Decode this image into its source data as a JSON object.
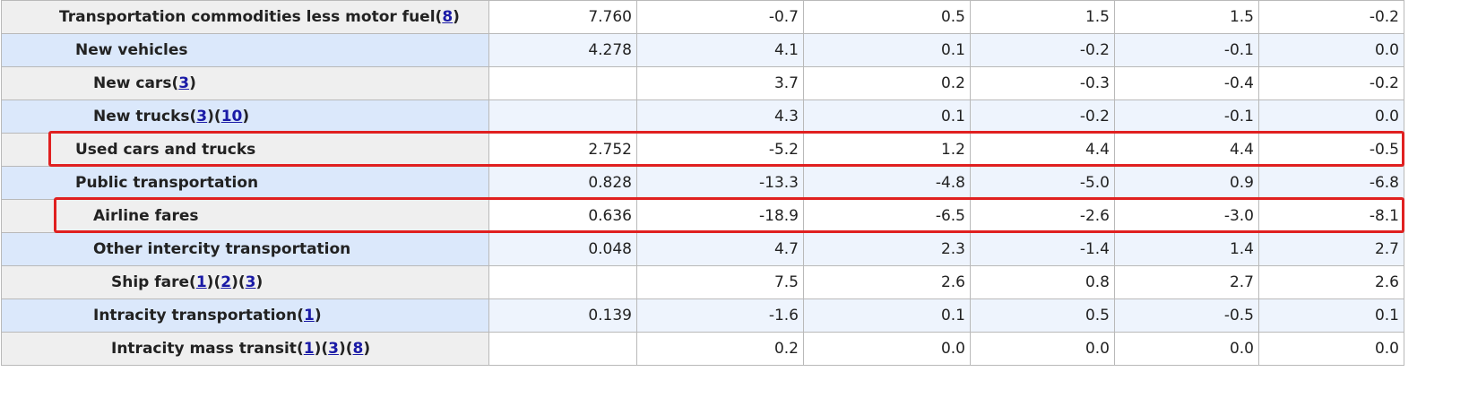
{
  "table": {
    "rows": [
      {
        "label": "Transportation commodities less motor fuel",
        "level": 0,
        "notes": [
          "8"
        ],
        "weight": "7.760",
        "values": [
          "-0.7",
          "0.5",
          "1.5",
          "1.5",
          "-0.2"
        ]
      },
      {
        "label": "New vehicles",
        "level": 1,
        "notes": [],
        "weight": "4.278",
        "values": [
          "4.1",
          "0.1",
          "-0.2",
          "-0.1",
          "0.0"
        ]
      },
      {
        "label": "New cars",
        "level": 2,
        "notes": [
          "3"
        ],
        "weight": null,
        "values": [
          "3.7",
          "0.2",
          "-0.3",
          "-0.4",
          "-0.2"
        ]
      },
      {
        "label": "New trucks",
        "level": 2,
        "notes": [
          "3",
          "10"
        ],
        "weight": null,
        "values": [
          "4.3",
          "0.1",
          "-0.2",
          "-0.1",
          "0.0"
        ]
      },
      {
        "label": "Used cars and trucks",
        "level": 1,
        "notes": [],
        "weight": "2.752",
        "values": [
          "-5.2",
          "1.2",
          "4.4",
          "4.4",
          "-0.5"
        ],
        "highlighted": true
      },
      {
        "label": "Public transportation",
        "level": 1,
        "notes": [],
        "weight": "0.828",
        "values": [
          "-13.3",
          "-4.8",
          "-5.0",
          "0.9",
          "-6.8"
        ]
      },
      {
        "label": "Airline fares",
        "level": 2,
        "notes": [],
        "weight": "0.636",
        "values": [
          "-18.9",
          "-6.5",
          "-2.6",
          "-3.0",
          "-8.1"
        ],
        "highlighted": true
      },
      {
        "label": "Other intercity transportation",
        "level": 2,
        "notes": [],
        "weight": "0.048",
        "values": [
          "4.7",
          "2.3",
          "-1.4",
          "1.4",
          "2.7"
        ]
      },
      {
        "label": "Ship fare",
        "level": 3,
        "notes": [
          "1",
          "2",
          "3"
        ],
        "weight": null,
        "values": [
          "7.5",
          "2.6",
          "0.8",
          "2.7",
          "2.6"
        ]
      },
      {
        "label": "Intracity transportation",
        "level": 2,
        "notes": [
          "1"
        ],
        "weight": "0.139",
        "values": [
          "-1.6",
          "0.1",
          "0.5",
          "-0.5",
          "0.1"
        ]
      },
      {
        "label": "Intracity mass transit",
        "level": 3,
        "notes": [
          "1",
          "3",
          "8"
        ],
        "weight": null,
        "values": [
          "0.2",
          "0.0",
          "0.0",
          "0.0",
          "0.0"
        ]
      }
    ]
  }
}
